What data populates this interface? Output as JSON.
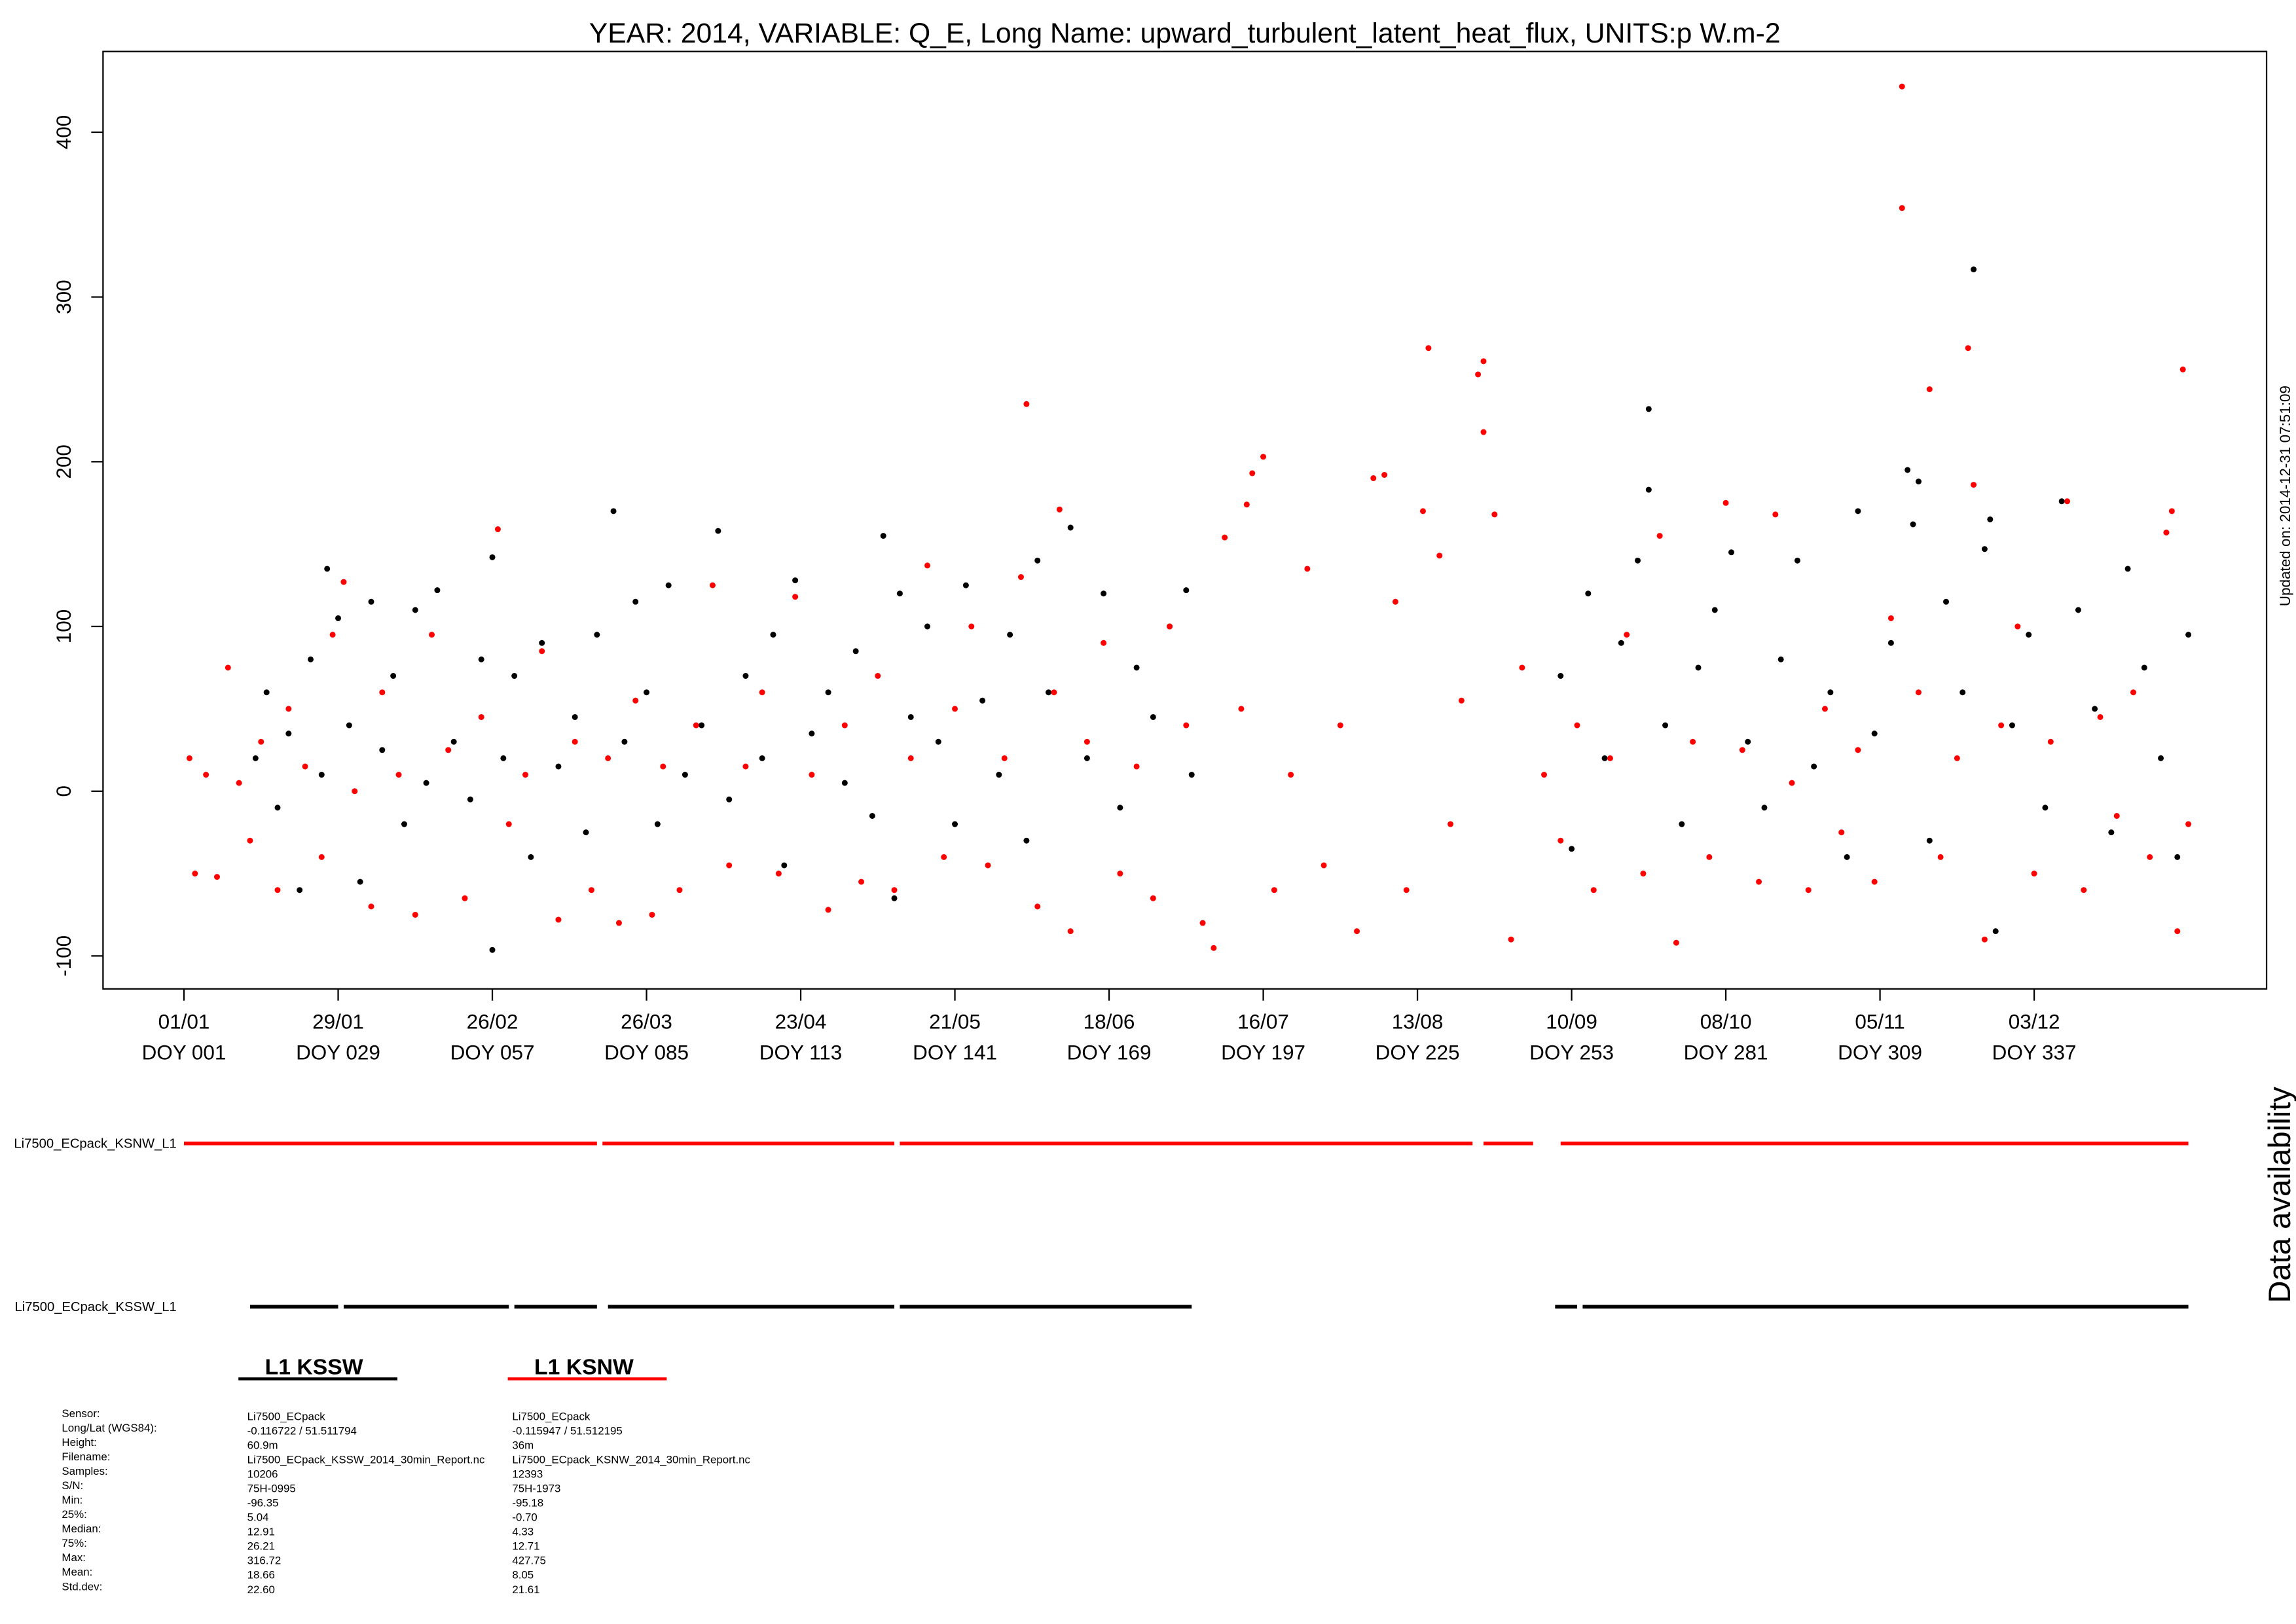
{
  "chart_data": {
    "type": "scatter",
    "title": "YEAR: 2014, VARIABLE: Q_E, Long Name: upward_turbulent_latent_heat_flux, UNITS:p W.m-2",
    "updated": "Updated on: 2014-12-31 07:51:09",
    "side_label": "Data availability",
    "xlim": [
      -13.7,
      379.2
    ],
    "ylim": [
      -120,
      449
    ],
    "yticks": [
      -100,
      0,
      100,
      200,
      300,
      400
    ],
    "xticks": [
      {
        "value": 1,
        "label": "01/01",
        "sublabel": "DOY 001"
      },
      {
        "value": 29,
        "label": "29/01",
        "sublabel": "DOY 029"
      },
      {
        "value": 57,
        "label": "26/02",
        "sublabel": "DOY 057"
      },
      {
        "value": 85,
        "label": "26/03",
        "sublabel": "DOY 085"
      },
      {
        "value": 113,
        "label": "23/04",
        "sublabel": "DOY 113"
      },
      {
        "value": 141,
        "label": "21/05",
        "sublabel": "DOY 141"
      },
      {
        "value": 169,
        "label": "18/06",
        "sublabel": "DOY 169"
      },
      {
        "value": 197,
        "label": "16/07",
        "sublabel": "DOY 197"
      },
      {
        "value": 225,
        "label": "13/08",
        "sublabel": "DOY 225"
      },
      {
        "value": 253,
        "label": "10/09",
        "sublabel": "DOY 253"
      },
      {
        "value": 281,
        "label": "08/10",
        "sublabel": "DOY 281"
      },
      {
        "value": 309,
        "label": "05/11",
        "sublabel": "DOY 309"
      },
      {
        "value": 337,
        "label": "03/12",
        "sublabel": "DOY 337"
      }
    ],
    "series": [
      {
        "name": "L1 KSSW",
        "color": "#000000",
        "x": [
          14,
          16,
          18,
          20,
          22,
          24,
          26,
          27,
          29,
          31,
          33,
          35,
          37,
          39,
          41,
          43,
          45,
          47,
          50,
          53,
          55,
          57,
          57,
          59,
          61,
          64,
          66,
          69,
          72,
          74,
          76,
          79,
          81,
          83,
          85,
          87,
          89,
          92,
          95,
          98,
          100,
          103,
          106,
          108,
          110,
          112,
          115,
          118,
          121,
          123,
          126,
          128,
          130,
          131,
          133,
          136,
          138,
          141,
          143,
          146,
          149,
          151,
          154,
          156,
          158,
          162,
          165,
          168,
          171,
          174,
          177,
          180,
          183,
          184,
          251,
          253,
          256,
          259,
          262,
          265,
          267,
          267,
          270,
          273,
          276,
          279,
          282,
          285,
          288,
          291,
          294,
          297,
          300,
          303,
          305,
          308,
          311,
          314,
          315,
          316,
          318,
          321,
          324,
          326,
          328,
          329,
          330,
          333,
          336,
          339,
          342,
          345,
          348,
          351,
          354,
          357,
          360,
          363,
          365
        ],
        "values": [
          20,
          60,
          -10,
          35,
          -60,
          80,
          10,
          135,
          105,
          40,
          -55,
          115,
          25,
          70,
          -20,
          110,
          5,
          122,
          30,
          -5,
          80,
          -96.35,
          142,
          20,
          70,
          -40,
          90,
          15,
          45,
          -25,
          95,
          170,
          30,
          115,
          60,
          -20,
          125,
          10,
          40,
          158,
          -5,
          70,
          20,
          95,
          -45,
          128,
          35,
          60,
          5,
          85,
          -15,
          155,
          -65,
          120,
          45,
          100,
          30,
          -20,
          125,
          55,
          10,
          95,
          -30,
          140,
          60,
          160,
          20,
          120,
          -10,
          75,
          45,
          100,
          122,
          10,
          70,
          -35,
          120,
          20,
          90,
          140,
          232,
          183,
          40,
          -20,
          75,
          110,
          145,
          30,
          -10,
          80,
          140,
          15,
          60,
          -40,
          170,
          35,
          90,
          195,
          162,
          188,
          -30,
          115,
          60,
          316.72,
          147,
          165,
          -85,
          40,
          95,
          -10,
          176,
          110,
          50,
          -25,
          135,
          75,
          20,
          -40,
          95
        ]
      },
      {
        "name": "L1 KSNW",
        "color": "#ff0000",
        "x": [
          2,
          3,
          5,
          7,
          9,
          11,
          13,
          15,
          18,
          20,
          23,
          26,
          28,
          30,
          32,
          35,
          37,
          40,
          43,
          46,
          49,
          52,
          55,
          58,
          60,
          63,
          66,
          69,
          72,
          75,
          78,
          80,
          83,
          86,
          88,
          91,
          94,
          97,
          100,
          103,
          106,
          109,
          112,
          115,
          118,
          121,
          124,
          127,
          130,
          133,
          136,
          139,
          141,
          144,
          147,
          150,
          153,
          154,
          156,
          159,
          160,
          162,
          165,
          168,
          171,
          174,
          177,
          180,
          183,
          186,
          188,
          190,
          193,
          194,
          195,
          197,
          199,
          202,
          205,
          208,
          211,
          214,
          217,
          219,
          221,
          223,
          226,
          227,
          229,
          231,
          233,
          236,
          237,
          237,
          239,
          242,
          244,
          248,
          251,
          254,
          257,
          260,
          263,
          266,
          269,
          272,
          275,
          278,
          281,
          284,
          287,
          290,
          293,
          296,
          299,
          302,
          305,
          308,
          311,
          313,
          313,
          316,
          318,
          320,
          323,
          325,
          326,
          328,
          331,
          334,
          337,
          340,
          343,
          346,
          349,
          352,
          355,
          358,
          361,
          362,
          363,
          364,
          365
        ],
        "values": [
          20,
          -50,
          10,
          -52,
          75,
          5,
          -30,
          30,
          -60,
          50,
          15,
          -40,
          95,
          127,
          0,
          -70,
          60,
          10,
          -75,
          95,
          25,
          -65,
          45,
          159,
          -20,
          10,
          85,
          -78,
          30,
          -60,
          20,
          -80,
          55,
          -75,
          15,
          -60,
          40,
          125,
          -45,
          15,
          60,
          -50,
          118,
          10,
          -72,
          40,
          -55,
          70,
          -60,
          20,
          137,
          -40,
          50,
          100,
          -45,
          20,
          130,
          235,
          -70,
          60,
          171,
          -85,
          30,
          90,
          -50,
          15,
          -65,
          100,
          40,
          -80,
          -95.18,
          154,
          50,
          174,
          193,
          203,
          -60,
          10,
          135,
          -45,
          40,
          -85,
          190,
          192,
          115,
          -60,
          170,
          269,
          143,
          -20,
          55,
          253,
          261,
          218,
          168,
          -90,
          75,
          10,
          -30,
          40,
          -60,
          20,
          95,
          -50,
          155,
          -92,
          30,
          -40,
          175,
          25,
          -55,
          168,
          5,
          -60,
          50,
          -25,
          25,
          -55,
          105,
          427.75,
          354,
          60,
          244,
          -40,
          20,
          269,
          186,
          -90,
          40,
          100,
          -50,
          30,
          176,
          -60,
          45,
          -15,
          60,
          -40,
          157,
          170,
          -85,
          256,
          -20
        ]
      }
    ],
    "availability": [
      {
        "label": "Li7500_ECpack_KSNW_L1",
        "color": "#ff0000",
        "segments": [
          [
            1,
            76
          ],
          [
            77,
            130
          ],
          [
            131,
            235
          ],
          [
            237,
            246
          ],
          [
            251,
            365
          ]
        ]
      },
      {
        "label": "Li7500_ECpack_KSSW_L1",
        "color": "#000000",
        "segments": [
          [
            13,
            29
          ],
          [
            30,
            60
          ],
          [
            61,
            76
          ],
          [
            78,
            130
          ],
          [
            131,
            184
          ],
          [
            250,
            254
          ],
          [
            255,
            365
          ]
        ]
      }
    ],
    "stats": {
      "labels": [
        "Sensor:",
        "Long/Lat (WGS84):",
        "Height:",
        "Filename:",
        "Samples:",
        "S/N:",
        "Min:",
        "25%:",
        "Median:",
        "75%:",
        "Max:",
        "Mean:",
        "Std.dev:"
      ],
      "columns": [
        [
          "Li7500_ECpack",
          "-0.116722 / 51.511794",
          "60.9m",
          "Li7500_ECpack_KSSW_2014_30min_Report.nc",
          "10206",
          "75H-0995",
          "-96.35",
          "5.04",
          "12.91",
          "26.21",
          "316.72",
          "18.66",
          "22.60"
        ],
        [
          "Li7500_ECpack",
          "-0.115947 / 51.512195",
          "36m",
          "Li7500_ECpack_KSNW_2014_30min_Report.nc",
          "12393",
          "75H-1973",
          "-95.18",
          "-0.70",
          "4.33",
          "12.71",
          "427.75",
          "8.05",
          "21.61"
        ]
      ]
    }
  }
}
